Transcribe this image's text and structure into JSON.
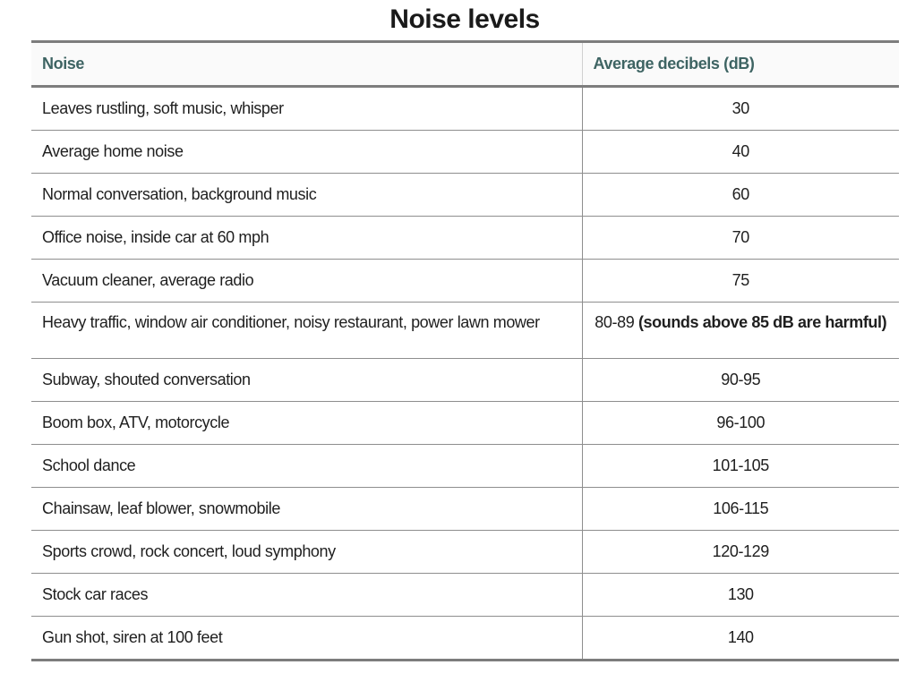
{
  "title": "Noise levels",
  "table": {
    "headers": {
      "noise": "Noise",
      "decibels": "Average decibels (dB)"
    },
    "rows": [
      {
        "noise": "Leaves rustling, soft music, whisper",
        "db": "30"
      },
      {
        "noise": "Average home noise",
        "db": "40"
      },
      {
        "noise": "Normal conversation, background music",
        "db": "60"
      },
      {
        "noise": "Office noise, inside car at 60 mph",
        "db": "70"
      },
      {
        "noise": "Vacuum cleaner, average radio",
        "db": "75"
      },
      {
        "noise": "Heavy traffic, window air conditioner, noisy restaurant, power lawn mower",
        "db": "80-89",
        "note": "(sounds above 85 dB are harmful)"
      },
      {
        "noise": "Subway, shouted conversation",
        "db": "90-95"
      },
      {
        "noise": "Boom box, ATV, motorcycle",
        "db": "96-100"
      },
      {
        "noise": "School dance",
        "db": "101-105"
      },
      {
        "noise": "Chainsaw, leaf blower, snowmobile",
        "db": "106-115"
      },
      {
        "noise": "Sports crowd, rock concert, loud symphony",
        "db": "120-129"
      },
      {
        "noise": "Stock car races",
        "db": "130"
      },
      {
        "noise": "Gun shot, siren at 100 feet",
        "db": "140"
      }
    ]
  },
  "colors": {
    "header_text": "#3e6463",
    "border": "#7d7d7d",
    "body_text": "#1f1f1f"
  }
}
